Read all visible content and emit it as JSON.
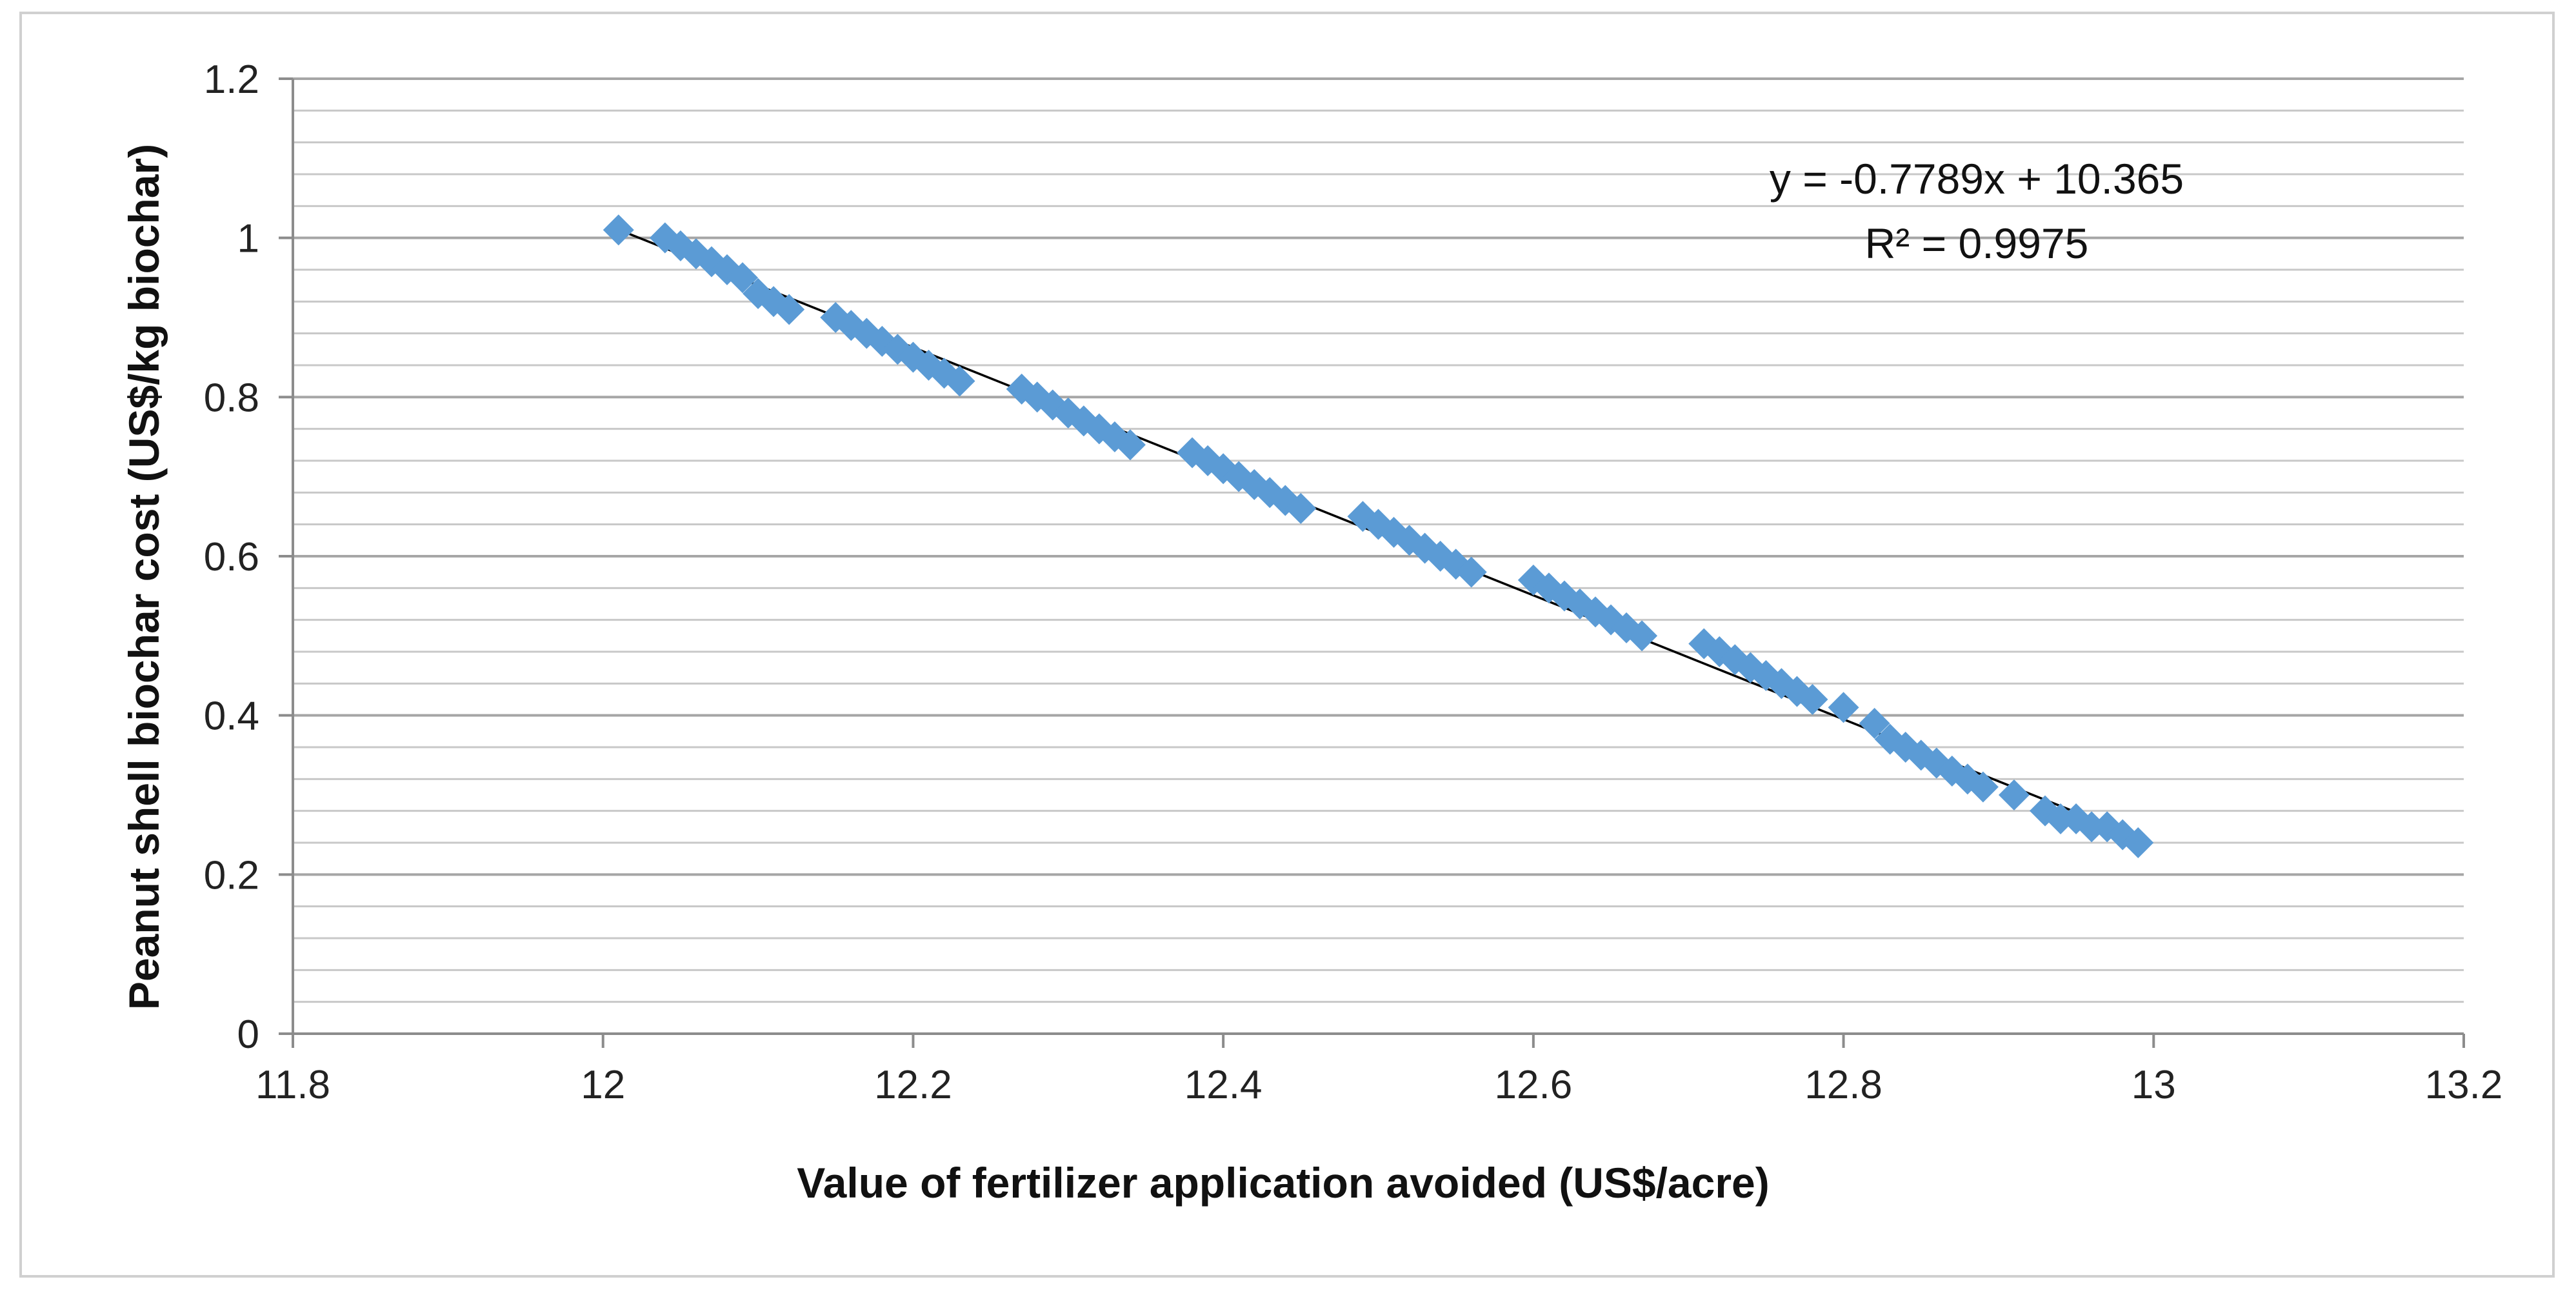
{
  "chart_data": {
    "type": "scatter",
    "xlabel": "Value of fertilizer application avoided (US$/acre)",
    "ylabel": "Peanut shell biochar cost (US$/kg biochar)",
    "xlim": [
      11.8,
      13.2
    ],
    "ylim": [
      0,
      1.2
    ],
    "x_ticks": [
      "11.8",
      "12",
      "12.2",
      "12.4",
      "12.6",
      "12.8",
      "13",
      "13.2"
    ],
    "y_ticks": [
      "0",
      "0.2",
      "0.4",
      "0.6",
      "0.8",
      "1",
      "1.2"
    ],
    "grid": "horizontal, major and minor",
    "legend": "none",
    "marker": "diamond",
    "series_color": "#5b9bd5",
    "trendline": {
      "type": "linear",
      "slope": -0.7789,
      "intercept": 10.365,
      "equation_line": "y = -0.7789x + 10.365",
      "r2_line": "R² = 0.9975"
    },
    "series": [
      {
        "x": [
          12.01,
          12.04,
          12.05,
          12.06,
          12.07,
          12.08,
          12.09,
          12.1,
          12.11,
          12.12,
          12.15,
          12.16,
          12.17,
          12.18,
          12.19,
          12.2,
          12.21,
          12.22,
          12.23,
          12.27,
          12.28,
          12.29,
          12.3,
          12.31,
          12.32,
          12.33,
          12.34,
          12.38,
          12.39,
          12.4,
          12.41,
          12.42,
          12.43,
          12.44,
          12.45,
          12.49,
          12.5,
          12.51,
          12.52,
          12.53,
          12.54,
          12.55,
          12.56,
          12.6,
          12.61,
          12.62,
          12.63,
          12.64,
          12.65,
          12.66,
          12.67,
          12.71,
          12.72,
          12.73,
          12.74,
          12.75,
          12.76,
          12.77,
          12.78,
          12.8,
          12.82,
          12.83,
          12.84,
          12.85,
          12.86,
          12.87,
          12.88,
          12.89,
          12.91,
          12.93,
          12.94,
          12.95,
          12.96,
          12.97,
          12.98,
          12.99
        ],
        "y": [
          1.01,
          1.0,
          0.99,
          0.98,
          0.97,
          0.96,
          0.95,
          0.93,
          0.92,
          0.91,
          0.9,
          0.89,
          0.88,
          0.87,
          0.86,
          0.85,
          0.84,
          0.83,
          0.82,
          0.81,
          0.8,
          0.79,
          0.78,
          0.77,
          0.76,
          0.75,
          0.74,
          0.73,
          0.72,
          0.71,
          0.7,
          0.69,
          0.68,
          0.67,
          0.66,
          0.65,
          0.64,
          0.63,
          0.62,
          0.61,
          0.6,
          0.59,
          0.58,
          0.57,
          0.56,
          0.55,
          0.54,
          0.53,
          0.52,
          0.51,
          0.5,
          0.49,
          0.48,
          0.47,
          0.46,
          0.45,
          0.44,
          0.43,
          0.42,
          0.41,
          0.39,
          0.37,
          0.36,
          0.35,
          0.34,
          0.33,
          0.32,
          0.31,
          0.3,
          0.28,
          0.27,
          0.27,
          0.26,
          0.26,
          0.25,
          0.24
        ]
      }
    ]
  }
}
